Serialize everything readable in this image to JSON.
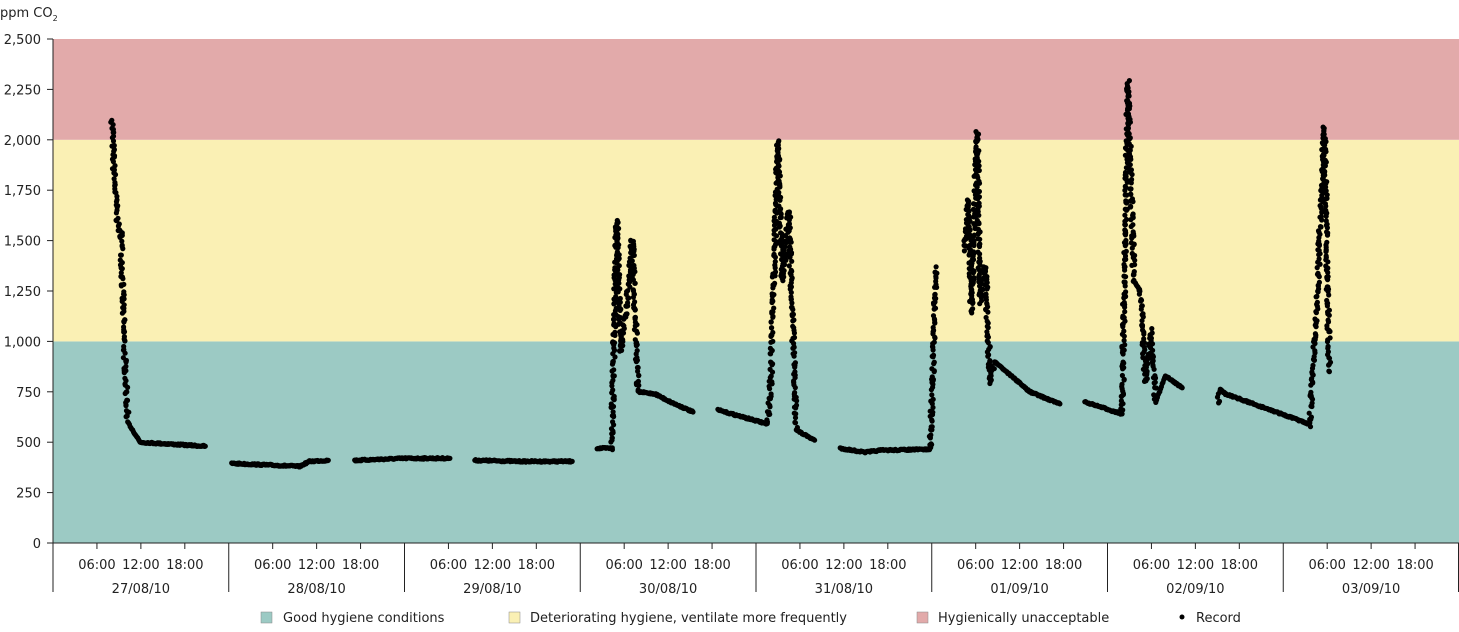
{
  "chart_data": {
    "type": "scatter",
    "ylabel": "ppm CO",
    "ylabel_sub": "2",
    "ylim": [
      0,
      2500
    ],
    "yticks": [
      0,
      250,
      500,
      750,
      1000,
      1250,
      1500,
      1750,
      2000,
      2250,
      2500
    ],
    "ytick_labels": [
      "0",
      "250",
      "500",
      "750",
      "1,000",
      "1,250",
      "1,500",
      "1,750",
      "2,000",
      "2,250",
      "2,500"
    ],
    "x_unit": "hours since 27/08/10 00:00",
    "xlim": [
      0,
      192
    ],
    "days": [
      "27/08/10",
      "28/08/10",
      "29/08/10",
      "30/08/10",
      "31/08/10",
      "01/09/10",
      "02/09/10",
      "03/09/10"
    ],
    "hour_ticks": [
      "06:00",
      "12:00",
      "18:00"
    ],
    "bands": [
      {
        "name": "Good hygiene conditions",
        "from": 0,
        "to": 1000,
        "color": "#9ccac4"
      },
      {
        "name": "Deteriorating hygiene, ventilate more frequently",
        "from": 1000,
        "to": 2000,
        "color": "#faf0b4"
      },
      {
        "name": "Hygienically unacceptable",
        "from": 2000,
        "to": 2500,
        "color": "#e2aaaa"
      }
    ],
    "series": [
      {
        "name": "Record",
        "color": "#000000",
        "segments": [
          [
            [
              8.1,
              2100
            ],
            [
              8.3,
              1850
            ],
            [
              8.9,
              1550
            ],
            [
              9.3,
              1550
            ],
            [
              9.7,
              1000
            ],
            [
              10.2,
              600
            ],
            [
              11.9,
              500
            ],
            [
              20.8,
              480
            ]
          ],
          [
            [
              24.4,
              395
            ],
            [
              33.7,
              380
            ],
            [
              35.0,
              405
            ],
            [
              37.6,
              410
            ]
          ],
          [
            [
              41.2,
              410
            ],
            [
              48,
              420
            ],
            [
              54.2,
              420
            ]
          ],
          [
            [
              57.6,
              410
            ],
            [
              64,
              405
            ],
            [
              70.9,
              405
            ]
          ],
          [
            [
              74.3,
              470
            ],
            [
              76.3,
              470
            ],
            [
              77.0,
              1600
            ],
            [
              77.5,
              950
            ],
            [
              78.3,
              1150
            ],
            [
              79.1,
              1510
            ],
            [
              79.9,
              750
            ],
            [
              82.2,
              740
            ],
            [
              84.3,
              700
            ],
            [
              87.4,
              650
            ]
          ],
          [
            [
              90.8,
              660
            ],
            [
              97.6,
              590
            ],
            [
              98.0,
              800
            ],
            [
              99.0,
              1990
            ],
            [
              99.6,
              1300
            ],
            [
              100.5,
              1650
            ],
            [
              101.5,
              560
            ],
            [
              104.0,
              510
            ]
          ],
          [
            [
              107.5,
              470
            ],
            [
              110.9,
              450
            ],
            [
              113,
              460
            ],
            [
              119.8,
              465
            ],
            [
              120.6,
              1370
            ]
          ],
          [
            [
              124.5,
              1450
            ],
            [
              125.0,
              1700
            ],
            [
              125.4,
              1150
            ],
            [
              126.2,
              2040
            ],
            [
              126.6,
              1200
            ],
            [
              127.3,
              1380
            ],
            [
              128.0,
              800
            ],
            [
              128.6,
              900
            ],
            [
              133.4,
              750
            ],
            [
              137.5,
              690
            ]
          ],
          [
            [
              140.9,
              700
            ],
            [
              146.0,
              640
            ],
            [
              146.8,
              2280
            ],
            [
              147.6,
              1300
            ],
            [
              148.5,
              1250
            ],
            [
              149.2,
              800
            ],
            [
              149.9,
              1050
            ],
            [
              150.6,
              700
            ],
            [
              151.9,
              830
            ],
            [
              154.2,
              770
            ]
          ],
          [
            [
              159.1,
              700
            ],
            [
              159.4,
              760
            ],
            [
              160.1,
              740
            ],
            [
              171.6,
              590
            ],
            [
              172.5,
              1100
            ],
            [
              173.6,
              2060
            ],
            [
              174.3,
              850
            ]
          ]
        ]
      }
    ]
  },
  "legend": {
    "good": "Good hygiene conditions",
    "deteriorating": "Deteriorating hygiene, ventilate more frequently",
    "unacceptable": "Hygienically unacceptable",
    "record": "Record"
  }
}
